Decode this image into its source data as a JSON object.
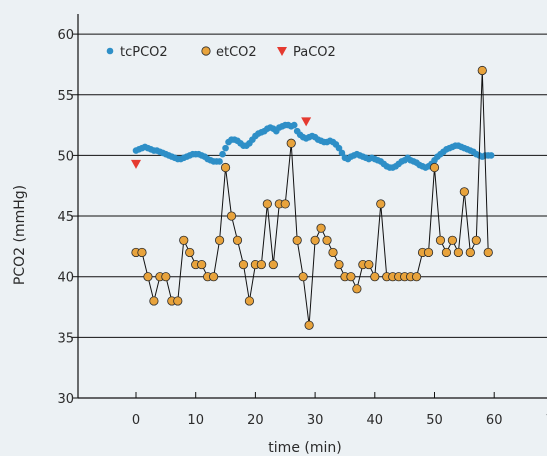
{
  "chart_data": {
    "type": "scatter",
    "xlabel": "time (min)",
    "ylabel": "PCO2 (mmHg)",
    "xlim": [
      -10,
      70
    ],
    "ylim": [
      30,
      61
    ],
    "x_ticks": [
      0,
      10,
      20,
      30,
      40,
      50,
      60,
      70
    ],
    "y_ticks": [
      30,
      35,
      40,
      45,
      50,
      55,
      60
    ],
    "grid": "horizontal",
    "legend_position": "top-left",
    "series": [
      {
        "name": "tcPCO2",
        "marker": "circle",
        "color": "#2e8fc7",
        "x": [
          0,
          0.5,
          1,
          1.5,
          2,
          2.5,
          3,
          3.5,
          4,
          4.5,
          5,
          5.5,
          6,
          6.5,
          7,
          7.5,
          8,
          8.5,
          9,
          9.5,
          10,
          10.5,
          11,
          11.5,
          12,
          12.5,
          13,
          13.5,
          14,
          14.5,
          15,
          15.5,
          16,
          16.5,
          17,
          17.5,
          18,
          18.5,
          19,
          19.5,
          20,
          20.5,
          21,
          21.5,
          22,
          22.5,
          23,
          23.5,
          24,
          24.5,
          25,
          25.5,
          26,
          26.5,
          27,
          27.5,
          28,
          28.5,
          29,
          29.5,
          30,
          30.5,
          31,
          31.5,
          32,
          32.5,
          33,
          33.5,
          34,
          34.5,
          35,
          35.5,
          36,
          36.5,
          37,
          37.5,
          38,
          38.5,
          39,
          39.5,
          40,
          40.5,
          41,
          41.5,
          42,
          42.5,
          43,
          43.5,
          44,
          44.5,
          45,
          45.5,
          46,
          46.5,
          47,
          47.5,
          48,
          48.5,
          49,
          49.5,
          50,
          50.5,
          51,
          51.5,
          52,
          52.5,
          53,
          53.5,
          54,
          54.5,
          55,
          55.5,
          56,
          56.5,
          57,
          57.5,
          58,
          58.5,
          59,
          59.5
        ],
        "y": [
          50.4,
          50.5,
          50.6,
          50.7,
          50.6,
          50.5,
          50.4,
          50.4,
          50.3,
          50.2,
          50.1,
          50.0,
          49.9,
          49.8,
          49.7,
          49.7,
          49.8,
          49.9,
          50.0,
          50.1,
          50.1,
          50.1,
          50.0,
          49.9,
          49.7,
          49.6,
          49.5,
          49.5,
          49.5,
          50.1,
          50.6,
          51.1,
          51.3,
          51.3,
          51.2,
          51.0,
          50.8,
          50.8,
          51.0,
          51.3,
          51.6,
          51.8,
          51.9,
          52.0,
          52.2,
          52.3,
          52.2,
          52.0,
          52.3,
          52.4,
          52.5,
          52.5,
          52.4,
          52.5,
          52.0,
          51.7,
          51.5,
          51.4,
          51.5,
          51.6,
          51.5,
          51.3,
          51.2,
          51.1,
          51.1,
          51.2,
          51.1,
          50.9,
          50.6,
          50.2,
          49.8,
          49.7,
          49.9,
          50.0,
          50.1,
          50.0,
          49.9,
          49.8,
          49.7,
          49.8,
          49.7,
          49.6,
          49.5,
          49.3,
          49.1,
          49.0,
          49.0,
          49.1,
          49.3,
          49.5,
          49.6,
          49.8,
          49.6,
          49.5,
          49.4,
          49.2,
          49.1,
          49.0,
          49.1,
          49.3,
          49.6,
          49.9,
          50.1,
          50.3,
          50.5,
          50.6,
          50.7,
          50.8,
          50.8,
          50.7,
          50.6,
          50.5,
          50.4,
          50.3,
          50.1,
          50.0,
          49.9,
          50.0,
          50.0,
          50.0
        ]
      },
      {
        "name": "etCO2",
        "marker": "circle-connected",
        "color": "#e8a33c",
        "x": [
          0,
          1,
          2,
          3,
          4,
          5,
          6,
          7,
          8,
          9,
          10,
          11,
          12,
          13,
          14,
          15,
          16,
          17,
          18,
          19,
          20,
          21,
          22,
          23,
          24,
          25,
          26,
          27,
          28,
          29,
          30,
          31,
          32,
          33,
          34,
          35,
          36,
          37,
          38,
          39,
          40,
          41,
          42,
          43,
          44,
          45,
          46,
          47,
          48,
          49,
          50,
          51,
          52,
          53,
          54,
          55,
          56,
          57,
          58,
          59
        ],
        "y": [
          42,
          42,
          40,
          38,
          40,
          40,
          38,
          38,
          43,
          42,
          41,
          41,
          40,
          40,
          43,
          49,
          45,
          43,
          41,
          38,
          41,
          41,
          46,
          41,
          46,
          46,
          51,
          43,
          40,
          36,
          43,
          44,
          43,
          42,
          41,
          40,
          40,
          39,
          41,
          41,
          40,
          46,
          40,
          40,
          40,
          40,
          40,
          40,
          42,
          42,
          49,
          43,
          42,
          43,
          42,
          47,
          42,
          43,
          57,
          42
        ]
      },
      {
        "name": "PaCO2",
        "marker": "triangle-down",
        "color": "#e53a30",
        "x": [
          0,
          28.5
        ],
        "y": [
          49.3,
          52.8
        ]
      }
    ]
  }
}
